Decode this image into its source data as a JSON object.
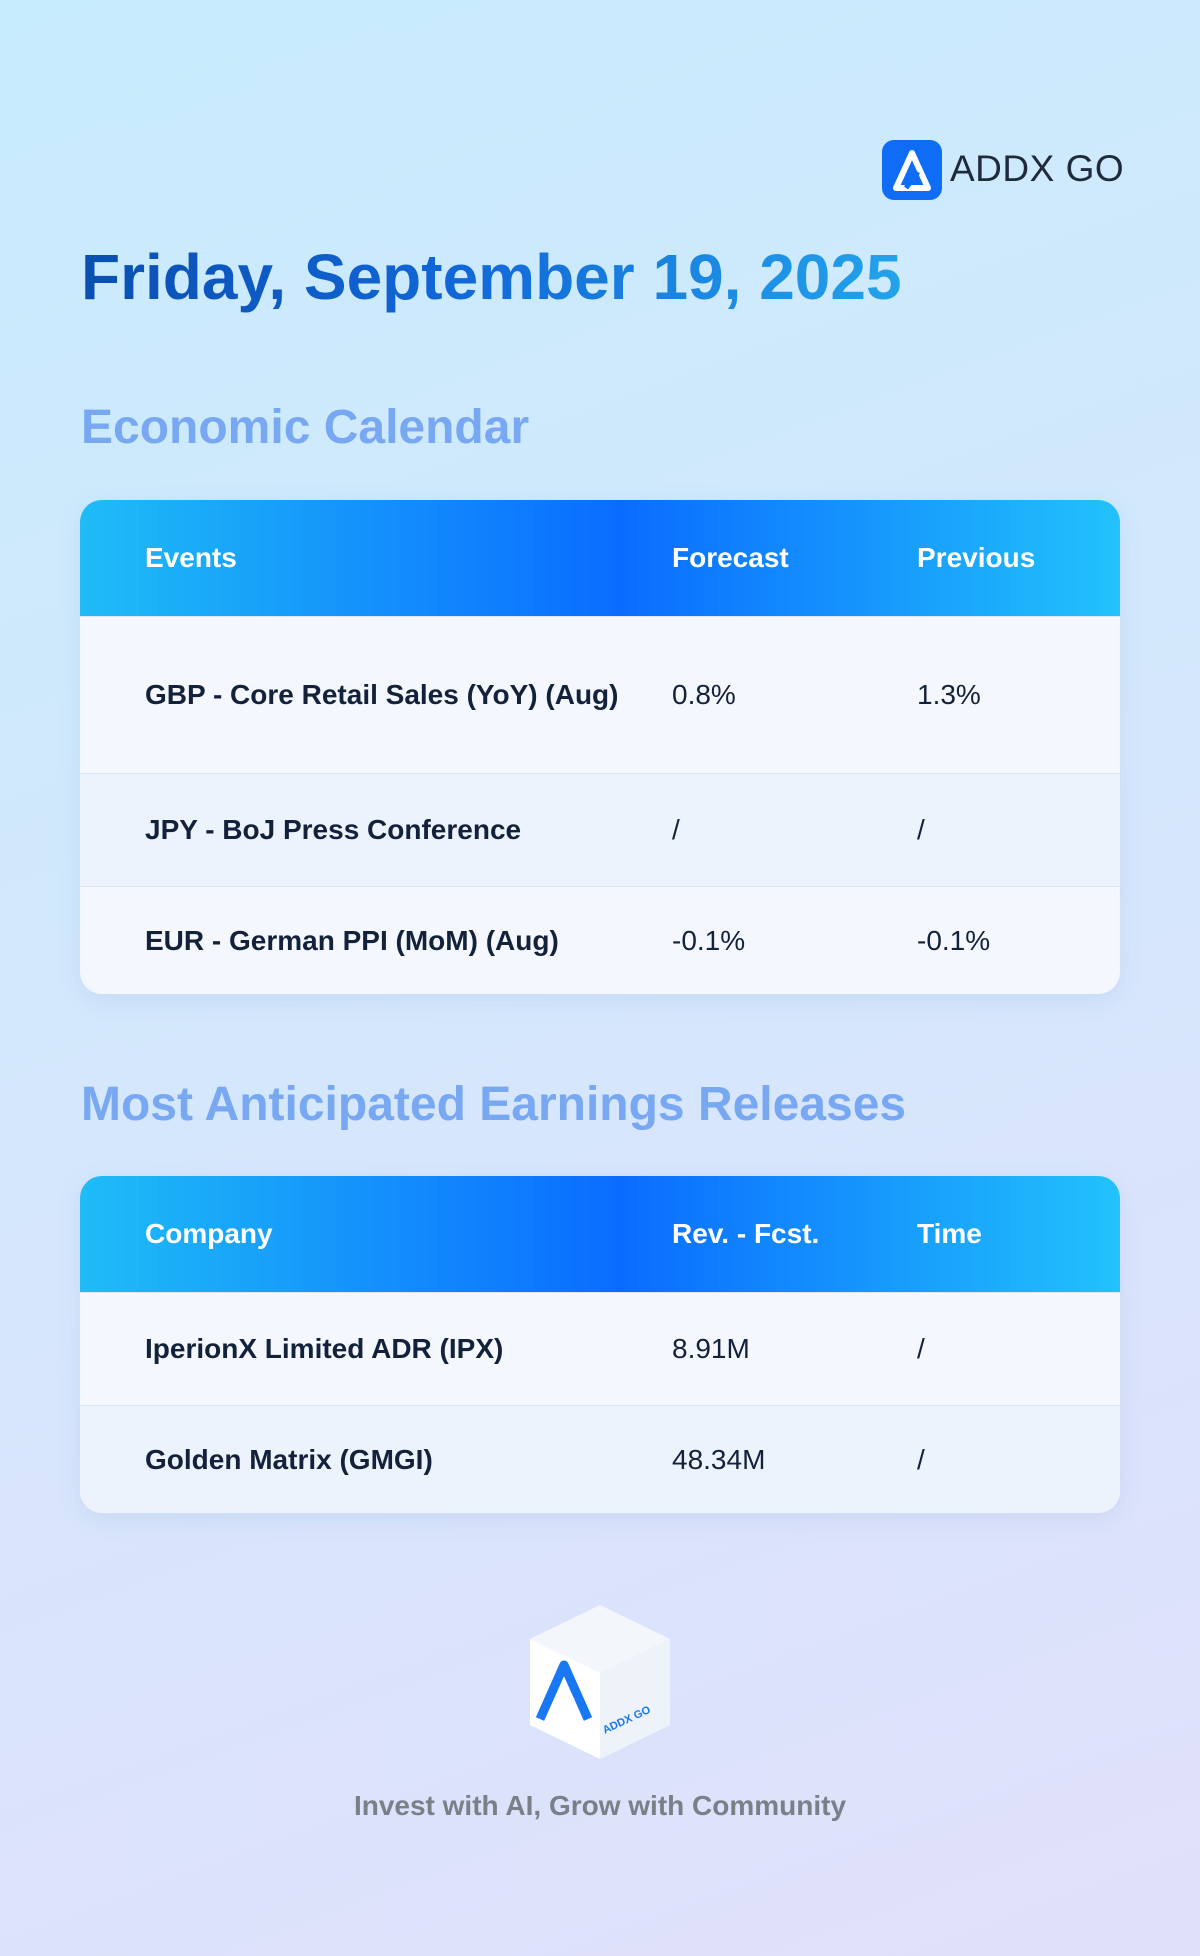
{
  "header": {
    "brand": "ADDX GO",
    "date": "Friday, September 19, 2025"
  },
  "economic_calendar": {
    "title": "Economic Calendar",
    "columns": [
      "Events",
      "Forecast",
      "Previous"
    ],
    "rows": [
      [
        "GBP - Core Retail Sales (YoY) (Aug)",
        "0.8%",
        "1.3%"
      ],
      [
        "JPY - BoJ Press Conference",
        "/",
        "/"
      ],
      [
        "EUR - German PPI (MoM) (Aug)",
        "-0.1%",
        "-0.1%"
      ]
    ]
  },
  "earnings": {
    "title": "Most Anticipated Earnings Releases",
    "columns": [
      "Company",
      "Rev. - Fcst.",
      "Time"
    ],
    "rows": [
      [
        "IperionX Limited ADR (IPX)",
        "8.91M",
        "/"
      ],
      [
        "Golden Matrix (GMGI)",
        "48.34M",
        "/"
      ]
    ]
  },
  "footer": {
    "cube_label": "ADDX GO",
    "tagline": "Invest with AI, Grow with Community"
  }
}
